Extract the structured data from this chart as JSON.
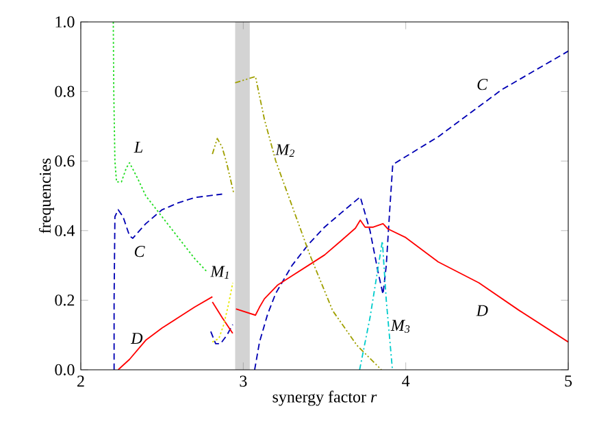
{
  "chart_data": {
    "type": "line",
    "xlabel": "synergy factor *r*",
    "ylabel": "frequencies",
    "xlim": [
      2,
      5
    ],
    "ylim": [
      0,
      1
    ],
    "xticks": [
      2,
      3,
      4,
      5
    ],
    "yticks": [
      {
        "value": 0,
        "label": "0.0"
      },
      0.2,
      0.4,
      0.6,
      0.8,
      {
        "value": 1,
        "label": "1.0"
      }
    ],
    "grid": false,
    "marker": "none",
    "series": [
      {
        "name": "C",
        "color": "#0000b4",
        "line_style": "dashed",
        "x": [
          2.205,
          2.205,
          2.21,
          2.23,
          2.26,
          2.3,
          2.32,
          2.4,
          2.5,
          2.6,
          2.7,
          2.87
        ],
        "values": [
          0,
          0.2,
          0.44,
          0.46,
          0.44,
          0.385,
          0.378,
          0.42,
          0.46,
          0.48,
          0.495,
          0.505
        ]
      },
      {
        "color": "#0000b4",
        "line_style": "dashed",
        "x": [
          2.8,
          2.83,
          2.86,
          2.9,
          2.935
        ],
        "values": [
          0.11,
          0.075,
          0.075,
          0.1,
          0.13
        ]
      },
      {
        "name": "C",
        "color": "#0000b4",
        "line_style": "dashed",
        "x": [
          3.07,
          3.1,
          3.15,
          3.2,
          3.3,
          3.4,
          3.5,
          3.6,
          3.72,
          3.78,
          3.83,
          3.86,
          3.88,
          3.9,
          3.92,
          4.2,
          4.59,
          5
        ],
        "values": [
          0,
          0.08,
          0.16,
          0.22,
          0.3,
          0.36,
          0.41,
          0.45,
          0.497,
          0.4,
          0.28,
          0.217,
          0.3,
          0.45,
          0.59,
          0.67,
          0.805,
          0.916
        ]
      },
      {
        "name": "D",
        "color": "#ff0000",
        "line_style": "solid",
        "x": [
          2.23,
          2.3,
          2.4,
          2.5,
          2.6,
          2.7,
          2.81
        ],
        "values": [
          0,
          0.03,
          0.085,
          0.12,
          0.15,
          0.18,
          0.21
        ]
      },
      {
        "color": "#ff0000",
        "line_style": "solid",
        "x": [
          2.81,
          2.87,
          2.935
        ],
        "values": [
          0.195,
          0.15,
          0.105
        ]
      },
      {
        "name": "D",
        "color": "#ff0000",
        "line_style": "solid",
        "x": [
          2.955,
          3.075,
          3.1,
          3.13,
          3.21,
          3.3,
          3.4,
          3.5,
          3.6,
          3.69,
          3.72,
          3.75,
          3.8,
          3.86,
          3.89,
          4.0,
          4.2,
          4.45,
          4.7,
          5
        ],
        "values": [
          0.175,
          0.157,
          0.18,
          0.204,
          0.243,
          0.27,
          0.3,
          0.33,
          0.37,
          0.407,
          0.43,
          0.41,
          0.41,
          0.42,
          0.405,
          0.38,
          0.31,
          0.25,
          0.17,
          0.08
        ]
      },
      {
        "name": "L",
        "color": "#22dd22",
        "line_style": "dotted",
        "x": [
          2.2,
          2.203,
          2.21,
          2.22,
          2.25,
          2.28,
          2.3,
          2.35,
          2.4,
          2.5,
          2.6,
          2.7,
          2.78
        ],
        "values": [
          1.0,
          0.8,
          0.6,
          0.54,
          0.54,
          0.58,
          0.595,
          0.55,
          0.5,
          0.44,
          0.38,
          0.32,
          0.28
        ]
      },
      {
        "name": "M$_{1}$",
        "color": "#e8e800",
        "line_style": "dotted",
        "x": [
          2.81,
          2.85,
          2.88,
          2.91,
          2.935
        ],
        "values": [
          0.08,
          0.09,
          0.13,
          0.19,
          0.25
        ]
      },
      {
        "color": "#a0a000",
        "line_style": "dashdotdot",
        "x": [
          2.81,
          2.84,
          2.87,
          2.9,
          2.94
        ],
        "values": [
          0.62,
          0.665,
          0.64,
          0.59,
          0.51
        ]
      },
      {
        "name": "M$_{2}$",
        "color": "#a0a000",
        "line_style": "dashdotdot",
        "x": [
          2.95,
          3.075,
          3.13,
          3.2,
          3.27,
          3.41,
          3.55,
          3.7,
          3.85
        ],
        "values": [
          0.825,
          0.843,
          0.72,
          0.6,
          0.51,
          0.33,
          0.17,
          0.07,
          0.0
        ]
      },
      {
        "name": "M$_{3}$",
        "color": "#00cccc",
        "line_style": "dashdot",
        "x": [
          3.716,
          3.78,
          3.856,
          3.88,
          3.918
        ],
        "values": [
          0,
          0.15,
          0.37,
          0.2,
          0
        ]
      }
    ],
    "bands": [
      {
        "axis": "x",
        "from": 2.95,
        "to": 3.04,
        "color": "#d3d3d3"
      }
    ]
  }
}
